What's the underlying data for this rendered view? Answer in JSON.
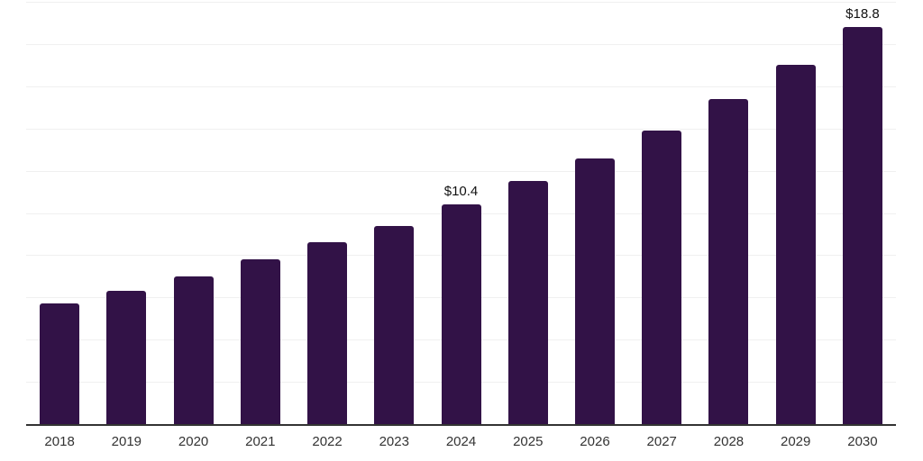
{
  "chart_data": {
    "type": "bar",
    "categories": [
      "2018",
      "2019",
      "2020",
      "2021",
      "2022",
      "2023",
      "2024",
      "2025",
      "2026",
      "2027",
      "2028",
      "2029",
      "2030"
    ],
    "values": [
      5.7,
      6.3,
      7.0,
      7.8,
      8.6,
      9.4,
      10.4,
      11.5,
      12.6,
      13.9,
      15.4,
      17.0,
      18.8
    ],
    "data_labels": [
      {
        "category": "2024",
        "text": "$10.4"
      },
      {
        "category": "2030",
        "text": "$18.8"
      }
    ],
    "title": "",
    "xlabel": "",
    "ylabel": "",
    "ylim": [
      0,
      20
    ],
    "y_tick_labels_visible": false,
    "gridline_step": 2,
    "grid": true,
    "legend": false,
    "colors": {
      "bar": "#321247",
      "gridline": "#f0f0f0",
      "axis_line": "#333333",
      "tick_label": "#333333",
      "data_label": "#111111",
      "background": "#ffffff"
    }
  }
}
